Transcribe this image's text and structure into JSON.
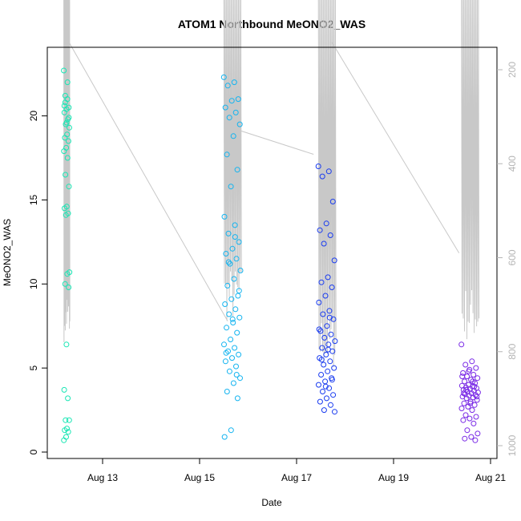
{
  "chart_data": {
    "type": "scatter",
    "title": "ATOM1 Northbound MeONO2_WAS",
    "xlabel": "Date",
    "ylabel": "MeONO2_WAS",
    "x_ticks": [
      "Aug 13",
      "Aug 15",
      "Aug 17",
      "Aug 19",
      "Aug 21"
    ],
    "y_ticks": [
      "0",
      "5",
      "10",
      "15",
      "20"
    ],
    "y2_ticks": [
      "200",
      "400",
      "600",
      "800",
      "1000"
    ],
    "xlim": [
      "2014-08-11",
      "2014-08-21"
    ],
    "ylim": [
      0,
      23.7
    ],
    "y2lim": [
      1010,
      100
    ],
    "y2_reversed": true,
    "grid": false,
    "point_style": "open circles colored by time (cyan-green to blue to purple)",
    "colors": {
      "flight1": "#19e6b4",
      "flight2": "#14b4f0",
      "flight3": "#1a3cf0",
      "flight4": "#7a2ae6",
      "altitude_line": "#c8c8c8"
    },
    "flights": [
      {
        "date_start": "2014-08-12",
        "x_range_days": [
          12.2,
          12.32
        ],
        "values": [
          22.7,
          21.0,
          20.8,
          20.5,
          20.4,
          20.2,
          19.8,
          19.5,
          19.3,
          18.9,
          18.7,
          18.5,
          18.1,
          17.9,
          17.5,
          16.5,
          15.8,
          14.6,
          14.5,
          14.2,
          14.1,
          10.7,
          10.6,
          10.0,
          9.8,
          6.4,
          3.7,
          3.2,
          1.9,
          1.9,
          1.4,
          1.3,
          1.2,
          0.9,
          0.7,
          22.0,
          21.2,
          19.9,
          19.6,
          20.6
        ],
        "altitude_hPa_range": [
          100,
          780
        ]
      },
      {
        "date_start": "2014-08-15",
        "x_range_days": [
          15.5,
          15.85
        ],
        "values": [
          22.3,
          22.0,
          21.8,
          21.0,
          20.9,
          20.5,
          20.2,
          19.9,
          19.5,
          18.8,
          17.7,
          16.8,
          15.8,
          14.0,
          13.5,
          13.0,
          12.5,
          12.1,
          11.8,
          11.5,
          11.2,
          10.8,
          10.3,
          9.9,
          9.3,
          9.1,
          8.8,
          8.5,
          8.2,
          8.0,
          7.7,
          7.4,
          7.1,
          6.7,
          6.4,
          6.2,
          6.0,
          5.8,
          5.6,
          5.4,
          5.1,
          4.8,
          4.4,
          4.1,
          3.6,
          3.2,
          1.3,
          0.9,
          12.8,
          11.3,
          9.6,
          7.9,
          5.9,
          4.6
        ],
        "altitude_hPa_range": [
          100,
          740
        ]
      },
      {
        "date_start": "2014-08-17",
        "x_range_days": [
          17.45,
          17.8
        ],
        "values": [
          17.0,
          16.7,
          16.4,
          14.9,
          13.6,
          13.2,
          12.9,
          12.4,
          11.4,
          10.4,
          10.1,
          9.8,
          9.3,
          8.9,
          8.4,
          8.2,
          7.9,
          7.5,
          7.2,
          7.0,
          6.8,
          6.6,
          6.4,
          6.2,
          6.0,
          5.8,
          5.6,
          5.4,
          5.2,
          5.0,
          4.8,
          4.6,
          4.4,
          4.2,
          4.0,
          3.8,
          3.6,
          3.4,
          3.2,
          3.0,
          2.8,
          2.5,
          2.4,
          6.1,
          5.5,
          4.3,
          3.9,
          7.3,
          8.0
        ],
        "altitude_hPa_range": [
          100,
          840
        ]
      },
      {
        "date_start": "2014-08-20",
        "x_range_days": [
          20.4,
          20.75
        ],
        "values": [
          6.4,
          5.4,
          5.2,
          5.0,
          4.9,
          4.7,
          4.6,
          4.5,
          4.4,
          4.3,
          4.2,
          4.1,
          4.0,
          3.95,
          3.9,
          3.85,
          3.8,
          3.75,
          3.7,
          3.65,
          3.6,
          3.55,
          3.5,
          3.45,
          3.4,
          3.35,
          3.3,
          3.25,
          3.2,
          3.1,
          3.0,
          2.9,
          2.8,
          2.7,
          2.6,
          2.5,
          2.2,
          2.1,
          2.0,
          1.9,
          1.7,
          1.3,
          1.1,
          0.9,
          0.8,
          0.7,
          4.8,
          4.5,
          4.2,
          3.7,
          3.3,
          2.9,
          3.5,
          3.9
        ],
        "altitude_hPa_range": [
          100,
          780
        ]
      }
    ]
  }
}
